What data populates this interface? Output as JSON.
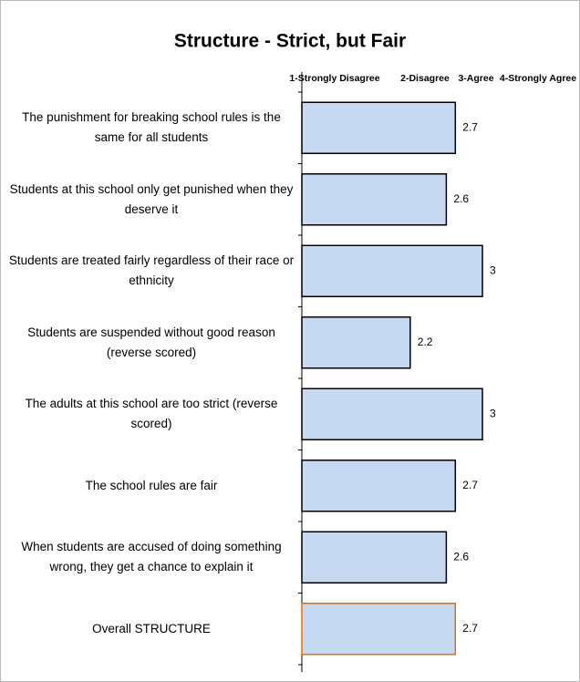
{
  "chart_data": {
    "type": "barh",
    "title": "Structure - Strict, but Fair",
    "scale_labels": [
      "1-Strongly Disagree",
      "2-Disagree",
      "3-Agree",
      "4-Strongly Agree"
    ],
    "categories": [
      "The punishment for breaking school rules is the same for all students",
      "Students at this school only get punished when they deserve it",
      "Students are treated fairly regardless of their race or ethnicity",
      "Students are suspended without good reason (reverse scored)",
      "The adults at this school are too strict (reverse scored)",
      "The school rules are fair",
      "When students are accused of doing something wrong, they get a chance to explain it",
      "Overall STRUCTURE"
    ],
    "values": [
      2.7,
      2.6,
      3,
      2.2,
      3,
      2.7,
      2.6,
      2.7
    ],
    "color": "#c6d9f0",
    "edge_colors": [
      "#000000",
      "#000000",
      "#000000",
      "#000000",
      "#000000",
      "#000000",
      "#000000",
      "#e46c0a"
    ],
    "xlim": [
      1,
      4
    ]
  }
}
